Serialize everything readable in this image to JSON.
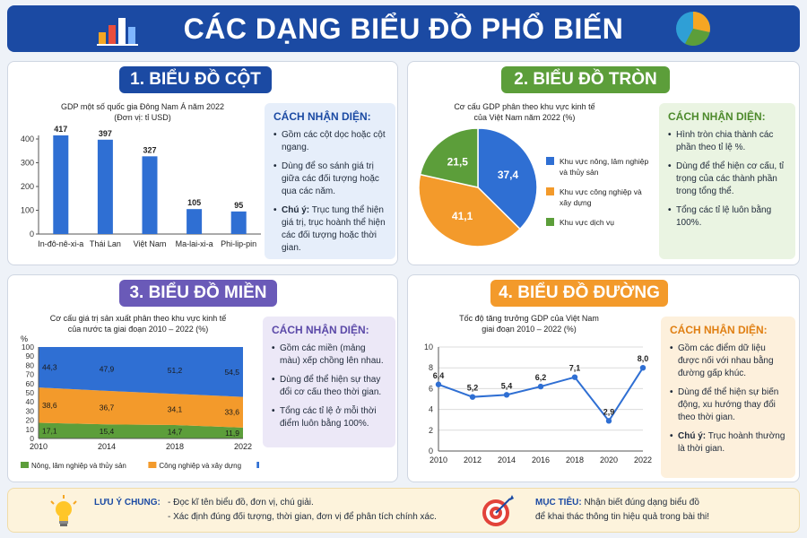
{
  "header": {
    "title": "CÁC DẠNG BIỂU ĐỒ PHỔ BIẾN"
  },
  "colors": {
    "navy": "#1b4aa3",
    "blue": "#2f6fd3",
    "orange": "#f39a2b",
    "green": "#5c9e3a",
    "purple": "#6a5ab8",
    "olive": "#6d9a34"
  },
  "panels": {
    "bar": {
      "title": "1. BIỂU ĐỒ CỘT",
      "chart_title": "GDP một số quốc gia Đông Nam Á năm 2022",
      "chart_subtitle": "(Đơn vị: tỉ USD)",
      "id_title": "CÁCH NHẬN DIỆN:",
      "id_items": [
        "Gồm các cột dọc hoặc cột ngang.",
        "Dùng để so sánh giá trị giữa các đối tượng hoặc qua các năm."
      ],
      "note_label": "Chú ý:",
      "note_text": " Trục tung thể hiện giá trị, trục hoành thể hiện các đối tượng hoặc thời gian."
    },
    "pie": {
      "title": "2. BIỂU ĐỒ TRÒN",
      "chart_title": "Cơ cấu GDP phân theo khu vực kinh tế",
      "chart_subtitle": "của Việt Nam năm 2022 (%)",
      "id_title": "CÁCH NHẬN DIỆN:",
      "id_items": [
        "Hình tròn chia thành các phần theo tỉ lệ %.",
        "Dùng để thể hiện cơ cấu, tỉ trọng của các thành phần trong tổng thể.",
        "Tổng các tỉ lệ luôn bằng 100%."
      ]
    },
    "area": {
      "title": "3. BIỂU ĐỒ MIỀN",
      "chart_title": "Cơ cấu giá trị sản xuất phân theo khu vực kinh tế",
      "chart_subtitle": "của nước ta giai đoạn 2010 – 2022 (%)",
      "id_title": "CÁCH NHẬN DIỆN:",
      "id_items": [
        "Gồm các miền (mảng màu) xếp chồng lên nhau.",
        "Dùng để thể hiện sự thay đổi cơ cấu theo thời gian.",
        "Tổng các tỉ lệ ở mỗi thời điểm luôn bằng 100%."
      ]
    },
    "line": {
      "title": "4. BIỂU ĐỒ ĐƯỜNG",
      "chart_title": "Tốc độ tăng trưởng GDP của Việt Nam",
      "chart_subtitle": "giai đoạn 2010 – 2022 (%)",
      "id_title": "CÁCH NHẬN DIỆN:",
      "id_items": [
        "Gồm các điểm dữ liệu được nối với nhau bằng đường gấp khúc.",
        "Dùng để thể hiện sự biến động, xu hướng thay đổi theo thời gian."
      ],
      "note_label": "Chú ý:",
      "note_text": " Trục hoành thường là thời gian."
    }
  },
  "footer": {
    "note_label": "LƯU Ý CHUNG:",
    "note_lines": [
      "- Đọc kĩ tên biểu đồ, đơn vị, chú giải.",
      "- Xác định đúng đối tượng, thời gian, đơn vị để phân tích chính xác."
    ],
    "goal_label": "MỤC TIÊU:",
    "goal_line1": " Nhận biết đúng dạng biểu đồ",
    "goal_line2": "để khai thác thông tin hiệu quả trong bài thi!"
  },
  "chart_data": [
    {
      "type": "bar",
      "title": "GDP một số quốc gia Đông Nam Á năm 2022",
      "subtitle": "(Đơn vị: tỉ USD)",
      "categories": [
        "In-đô-nê-xi-a",
        "Thái Lan",
        "Việt Nam",
        "Ma-lai-xi-a",
        "Phi-lip-pin"
      ],
      "values": [
        417,
        397,
        327,
        105,
        95
      ],
      "ylim": [
        0,
        400
      ],
      "yticks": [
        0,
        100,
        200,
        300,
        400
      ],
      "grid": false
    },
    {
      "type": "pie",
      "title": "Cơ cấu GDP phân theo khu vực kinh tế",
      "subtitle": "của Việt Nam năm 2022 (%)",
      "slices": [
        {
          "name": "Khu vực nông, lâm nghiệp và thủy sản",
          "value": 37.4,
          "label": "37,4",
          "color": "#2f6fd3"
        },
        {
          "name": "Khu vực công nghiệp và xây dựng",
          "value": 41.1,
          "label": "41,1",
          "color": "#f39a2b"
        },
        {
          "name": "Khu vực dịch vụ",
          "value": 21.5,
          "label": "21,5",
          "color": "#5c9e3a"
        }
      ],
      "legend": "right"
    },
    {
      "type": "area",
      "title": "Cơ cấu giá trị sản xuất phân theo khu vực kinh tế",
      "subtitle": "của nước ta giai đoạn 2010 – 2022 (%)",
      "ylabel": "%",
      "x": [
        "2010",
        "2014",
        "2018",
        "2022"
      ],
      "ylim": [
        0,
        100
      ],
      "yticks": [
        0,
        10,
        20,
        30,
        40,
        50,
        60,
        70,
        80,
        90,
        100
      ],
      "series": [
        {
          "name": "Nông, lâm nghiệp và thủy sản",
          "values": [
            17.1,
            15.4,
            14.7,
            11.9
          ],
          "labels": [
            "17,1",
            "15,4",
            "14,7",
            "11,9"
          ],
          "color": "#5c9e3a"
        },
        {
          "name": "Công nghiệp và xây dựng",
          "values": [
            38.6,
            36.7,
            34.1,
            33.6
          ],
          "labels": [
            "38,6",
            "36,7",
            "34,1",
            "33,6"
          ],
          "color": "#f39a2b"
        },
        {
          "name": "Dịch vụ",
          "values": [
            44.3,
            47.9,
            51.2,
            54.5
          ],
          "labels": [
            "44,3",
            "47,9",
            "51,2",
            "54,5"
          ],
          "color": "#2f6fd3"
        }
      ],
      "legend": "bottom"
    },
    {
      "type": "line",
      "title": "Tốc độ tăng trưởng GDP của Việt Nam",
      "subtitle": "giai đoạn 2010 – 2022 (%)",
      "x": [
        "2010",
        "2012",
        "2014",
        "2016",
        "2018",
        "2020",
        "2022"
      ],
      "values": [
        6.4,
        5.2,
        5.4,
        6.2,
        7.1,
        2.9,
        8.0
      ],
      "labels": [
        "6,4",
        "5,2",
        "5,4",
        "6,2",
        "7,1",
        "2,9",
        "8,0"
      ],
      "ylim": [
        0,
        10
      ],
      "yticks": [
        0,
        2,
        4,
        6,
        8,
        10
      ],
      "grid": true
    }
  ]
}
